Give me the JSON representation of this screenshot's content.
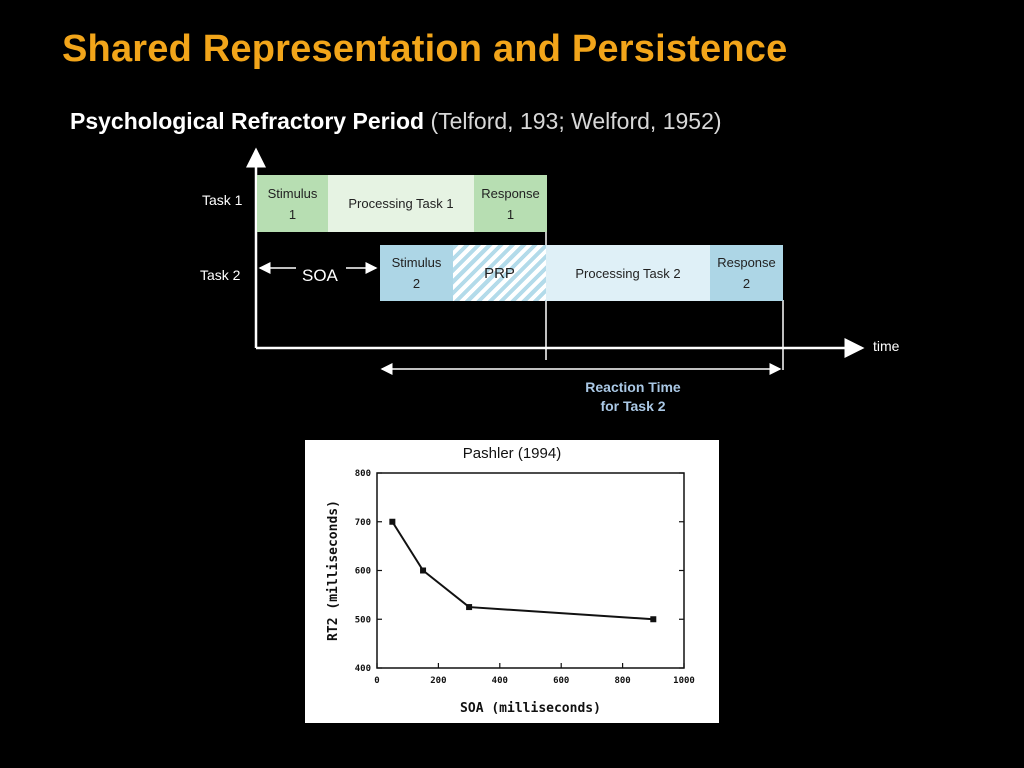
{
  "slide": {
    "title": "Shared Representation and Persistence",
    "subtitle_bold": "Psychological Refractory Period",
    "subtitle_normal": "(Telford, 193; Welford, 1952)"
  },
  "diagram": {
    "task1_label": "Task 1",
    "task2_label": "Task 2",
    "stimulus1": [
      "Stimulus",
      "1"
    ],
    "processing1": "Processing Task 1",
    "response1": [
      "Response",
      "1"
    ],
    "stimulus2": [
      "Stimulus",
      "2"
    ],
    "prp": "PRP",
    "processing2": "Processing Task 2",
    "response2": [
      "Response",
      "2"
    ],
    "soa_label": "SOA",
    "time_label": "time",
    "reaction_time_label": [
      "Reaction Time",
      "for Task 2"
    ],
    "colors": {
      "task1_dark": "#b7deb2",
      "task1_light": "#e6f3e3",
      "task2_dark": "#add6e6",
      "task2_light": "#dff0f7",
      "reaction_time_text": "#aac8e5",
      "title": "#f2a51a"
    }
  },
  "chart_data": {
    "type": "line",
    "title": "Pashler (1994)",
    "xlabel": "SOA (milliseconds)",
    "ylabel": "RT2 (milliseconds)",
    "xlim": [
      0,
      1000
    ],
    "ylim": [
      400,
      800
    ],
    "xticks": [
      0,
      200,
      400,
      600,
      800,
      1000
    ],
    "yticks": [
      400,
      500,
      600,
      700,
      800
    ],
    "grid": false,
    "series": [
      {
        "x": [
          50,
          150,
          300,
          900
        ],
        "y": [
          700,
          600,
          525,
          500
        ]
      }
    ]
  }
}
